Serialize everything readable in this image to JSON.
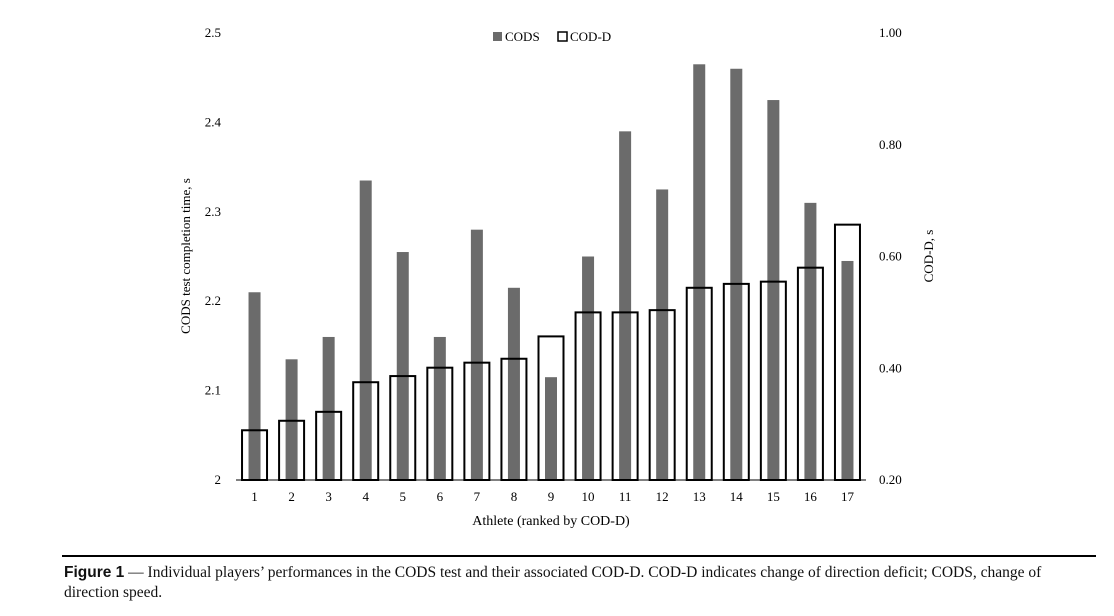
{
  "chart_data": {
    "type": "bar",
    "xlabel": "Athlete (ranked by COD-D)",
    "categories": [
      "1",
      "2",
      "3",
      "4",
      "5",
      "6",
      "7",
      "8",
      "9",
      "10",
      "11",
      "12",
      "13",
      "14",
      "15",
      "16",
      "17"
    ],
    "left_axis": {
      "label": "CODS test completion time, s",
      "ylim": [
        2,
        2.5
      ],
      "ticks": [
        "2",
        "2.1",
        "2.2",
        "2.3",
        "2.4",
        "2.5"
      ],
      "tick_values": [
        2,
        2.1,
        2.2,
        2.3,
        2.4,
        2.5
      ]
    },
    "right_axis": {
      "label": "COD-D, s",
      "ylim": [
        0.2,
        1.0
      ],
      "ticks": [
        "0.20",
        "0.40",
        "0.60",
        "0.80",
        "1.00"
      ],
      "tick_values": [
        0.2,
        0.4,
        0.6,
        0.8,
        1.0
      ]
    },
    "series": [
      {
        "name": "CODS",
        "axis": "left",
        "color": "#6b6b6b",
        "values": [
          2.21,
          2.135,
          2.16,
          2.335,
          2.255,
          2.16,
          2.28,
          2.215,
          2.115,
          2.25,
          2.39,
          2.325,
          2.465,
          2.46,
          2.425,
          2.31,
          2.245
        ]
      },
      {
        "name": "COD-D",
        "axis": "right",
        "color": "#ffffff",
        "values": [
          0.289,
          0.306,
          0.322,
          0.375,
          0.386,
          0.401,
          0.41,
          0.417,
          0.457,
          0.5,
          0.5,
          0.504,
          0.544,
          0.551,
          0.555,
          0.58,
          0.657
        ]
      }
    ],
    "legend_position": "top-center",
    "grid": false
  },
  "caption": {
    "lead": "Figure 1",
    "dash": " — ",
    "text": "Individual players’ performances in the CODS test and their associated COD-D. COD-D indicates change of direction deficit; CODS, change of direction speed."
  }
}
